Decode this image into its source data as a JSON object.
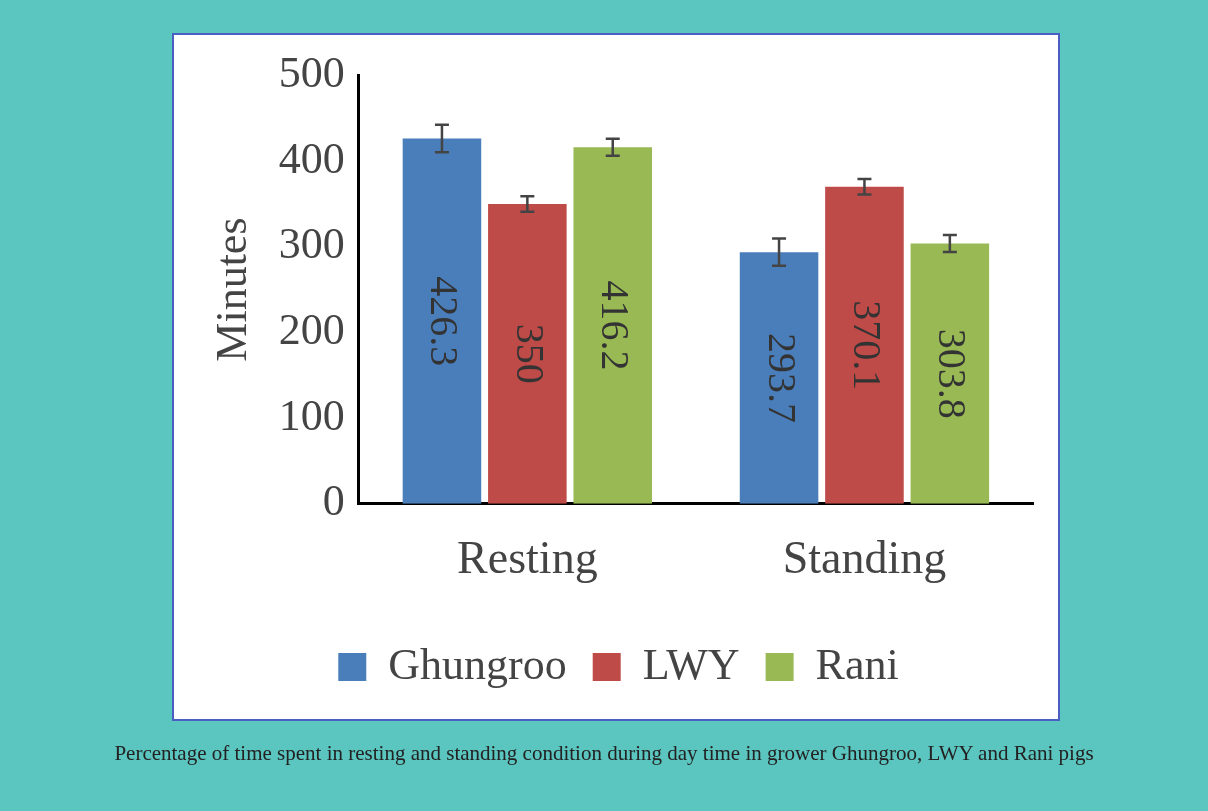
{
  "chart_data": {
    "type": "bar",
    "ylabel": "Minutes",
    "categories": [
      "Resting",
      "Standing"
    ],
    "series": [
      {
        "name": "Ghungroo",
        "color": "#4a7ebb",
        "values": [
          426.3,
          293.7
        ],
        "errors": [
          16,
          16
        ]
      },
      {
        "name": "LWY",
        "color": "#be4b48",
        "values": [
          350,
          370.1
        ],
        "errors": [
          9,
          9
        ]
      },
      {
        "name": "Rani",
        "color": "#98b954",
        "values": [
          416.2,
          303.8
        ],
        "errors": [
          10,
          10
        ]
      }
    ],
    "ylim": [
      0,
      500
    ],
    "yticks": [
      0,
      100,
      200,
      300,
      400,
      500
    ],
    "grid": false,
    "legend": "bottom",
    "data_labels": true,
    "annotations": [
      "Percentage of time spent in resting and standing condition during day time in grower Ghungroo, LWY and Rani pigs"
    ]
  }
}
